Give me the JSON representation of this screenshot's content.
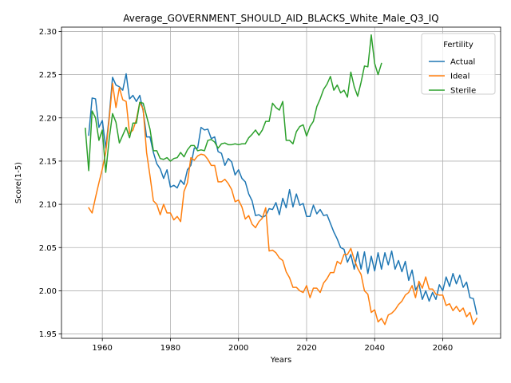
{
  "chart_data": {
    "type": "line",
    "title": "Average_GOVERNMENT_SHOULD_AID_BLACKS_White_Male_Q3_IQ",
    "xlabel": "Years",
    "ylabel": "Score(1-5)",
    "xlim": [
      1948,
      2077
    ],
    "ylim": [
      1.945,
      2.305
    ],
    "xticks": [
      1960,
      1980,
      2000,
      2020,
      2040,
      2060
    ],
    "yticks": [
      1.95,
      2.0,
      2.05,
      2.1,
      2.15,
      2.2,
      2.25,
      2.3
    ],
    "ytick_labels": [
      "1.95",
      "2.00",
      "2.05",
      "2.10",
      "2.15",
      "2.20",
      "2.25",
      "2.30"
    ],
    "grid": true,
    "legend": {
      "title": "Fertility",
      "position": "top-right"
    },
    "series": [
      {
        "name": "Actual",
        "color": "#1f77b4",
        "x": [
          1956,
          1957,
          1958,
          1959,
          1960,
          1961,
          1962,
          1963,
          1964,
          1965,
          1966,
          1967,
          1968,
          1969,
          1970,
          1971,
          1972,
          1973,
          1974,
          1975,
          1976,
          1977,
          1978,
          1979,
          1980,
          1981,
          1982,
          1983,
          1984,
          1985,
          1986,
          1987,
          1988,
          1989,
          1990,
          1991,
          1992,
          1993,
          1994,
          1995,
          1996,
          1997,
          1998,
          1999,
          2000,
          2001,
          2002,
          2003,
          2004,
          2005,
          2006,
          2007,
          2008,
          2009,
          2010,
          2011,
          2012,
          2013,
          2014,
          2015,
          2016,
          2017,
          2018,
          2019,
          2020,
          2021,
          2022,
          2023,
          2024,
          2025,
          2026,
          2027,
          2028,
          2029,
          2030,
          2031,
          2032,
          2033,
          2034,
          2035,
          2036,
          2037,
          2038,
          2039,
          2040,
          2041,
          2042,
          2043,
          2044,
          2045,
          2046,
          2047,
          2048,
          2049,
          2050,
          2051,
          2052,
          2053,
          2054,
          2055,
          2056,
          2057,
          2058,
          2059,
          2060,
          2061,
          2062,
          2063,
          2064,
          2065,
          2066,
          2067,
          2068,
          2069,
          2070
        ],
        "values": [
          2.18,
          2.223,
          2.222,
          2.189,
          2.197,
          2.165,
          2.201,
          2.247,
          2.238,
          2.236,
          2.232,
          2.251,
          2.222,
          2.226,
          2.219,
          2.226,
          2.208,
          2.178,
          2.178,
          2.16,
          2.147,
          2.141,
          2.13,
          2.14,
          2.12,
          2.122,
          2.119,
          2.128,
          2.123,
          2.14,
          2.145,
          2.165,
          2.165,
          2.189,
          2.186,
          2.187,
          2.176,
          2.178,
          2.161,
          2.159,
          2.145,
          2.153,
          2.149,
          2.134,
          2.14,
          2.13,
          2.126,
          2.112,
          2.104,
          2.087,
          2.088,
          2.085,
          2.087,
          2.095,
          2.094,
          2.102,
          2.088,
          2.107,
          2.096,
          2.117,
          2.097,
          2.112,
          2.099,
          2.101,
          2.086,
          2.086,
          2.099,
          2.089,
          2.094,
          2.087,
          2.088,
          2.078,
          2.068,
          2.06,
          2.05,
          2.048,
          2.033,
          2.042,
          2.025,
          2.045,
          2.025,
          2.045,
          2.02,
          2.04,
          2.023,
          2.044,
          2.025,
          2.044,
          2.03,
          2.046,
          2.025,
          2.035,
          2.022,
          2.034,
          2.012,
          2.024,
          2.001,
          2.008,
          1.99,
          2.0,
          1.988,
          1.998,
          1.99,
          2.007,
          2.0,
          2.016,
          2.005,
          2.02,
          2.008,
          2.018,
          2.004,
          2.01,
          1.992,
          1.991,
          1.973
        ]
      },
      {
        "name": "Ideal",
        "color": "#ff7f0e",
        "x": [
          1956,
          1957,
          1958,
          1959,
          1960,
          1961,
          1962,
          1963,
          1964,
          1965,
          1966,
          1967,
          1968,
          1969,
          1970,
          1971,
          1972,
          1973,
          1974,
          1975,
          1976,
          1977,
          1978,
          1979,
          1980,
          1981,
          1982,
          1983,
          1984,
          1985,
          1986,
          1987,
          1988,
          1989,
          1990,
          1991,
          1992,
          1993,
          1994,
          1995,
          1996,
          1997,
          1998,
          1999,
          2000,
          2001,
          2002,
          2003,
          2004,
          2005,
          2006,
          2007,
          2008,
          2009,
          2010,
          2011,
          2012,
          2013,
          2014,
          2015,
          2016,
          2017,
          2018,
          2019,
          2020,
          2021,
          2022,
          2023,
          2024,
          2025,
          2026,
          2027,
          2028,
          2029,
          2030,
          2031,
          2032,
          2033,
          2034,
          2035,
          2036,
          2037,
          2038,
          2039,
          2040,
          2041,
          2042,
          2043,
          2044,
          2045,
          2046,
          2047,
          2048,
          2049,
          2050,
          2051,
          2052,
          2053,
          2054,
          2055,
          2056,
          2057,
          2058,
          2059,
          2060,
          2061,
          2062,
          2063,
          2064,
          2065,
          2066,
          2067,
          2068,
          2069,
          2070
        ],
        "values": [
          2.096,
          2.09,
          2.108,
          2.125,
          2.141,
          2.16,
          2.198,
          2.24,
          2.212,
          2.235,
          2.221,
          2.219,
          2.182,
          2.186,
          2.198,
          2.218,
          2.21,
          2.16,
          2.133,
          2.104,
          2.1,
          2.088,
          2.1,
          2.09,
          2.09,
          2.082,
          2.086,
          2.08,
          2.115,
          2.125,
          2.154,
          2.151,
          2.156,
          2.158,
          2.157,
          2.152,
          2.145,
          2.145,
          2.126,
          2.126,
          2.129,
          2.124,
          2.117,
          2.103,
          2.105,
          2.097,
          2.083,
          2.087,
          2.077,
          2.073,
          2.08,
          2.084,
          2.096,
          2.046,
          2.047,
          2.044,
          2.038,
          2.035,
          2.022,
          2.015,
          2.004,
          2.004,
          2.0,
          1.998,
          2.006,
          1.992,
          2.003,
          2.003,
          1.998,
          2.009,
          2.014,
          2.021,
          2.021,
          2.034,
          2.031,
          2.042,
          2.042,
          2.049,
          2.036,
          2.026,
          2.019,
          2.0,
          1.996,
          1.975,
          1.978,
          1.964,
          1.968,
          1.961,
          1.972,
          1.974,
          1.978,
          1.984,
          1.988,
          1.995,
          1.998,
          2.006,
          1.992,
          2.011,
          2.003,
          2.016,
          2.002,
          2.002,
          1.996,
          1.995,
          1.995,
          1.983,
          1.985,
          1.977,
          1.982,
          1.976,
          1.98,
          1.97,
          1.975,
          1.961,
          1.968
        ]
      },
      {
        "name": "Sterile",
        "color": "#2ca02c",
        "x": [
          1955,
          1956,
          1957,
          1958,
          1959,
          1960,
          1961,
          1962,
          1963,
          1964,
          1965,
          1966,
          1967,
          1968,
          1969,
          1970,
          1971,
          1972,
          1973,
          1974,
          1975,
          1976,
          1977,
          1978,
          1979,
          1980,
          1981,
          1982,
          1983,
          1984,
          1985,
          1986,
          1987,
          1988,
          1989,
          1990,
          1991,
          1992,
          1993,
          1994,
          1995,
          1996,
          1997,
          1998,
          1999,
          2000,
          2001,
          2002,
          2003,
          2004,
          2005,
          2006,
          2007,
          2008,
          2009,
          2010,
          2011,
          2012,
          2013,
          2014,
          2015,
          2016,
          2017,
          2018,
          2019,
          2020,
          2021,
          2022,
          2023,
          2024,
          2025,
          2026,
          2027,
          2028,
          2029,
          2030,
          2031,
          2032,
          2033,
          2034,
          2035,
          2036,
          2037,
          2038,
          2039,
          2040,
          2041,
          2042
        ],
        "values": [
          2.188,
          2.139,
          2.208,
          2.2,
          2.174,
          2.186,
          2.137,
          2.175,
          2.205,
          2.195,
          2.171,
          2.18,
          2.189,
          2.177,
          2.194,
          2.194,
          2.218,
          2.217,
          2.202,
          2.187,
          2.162,
          2.162,
          2.153,
          2.152,
          2.154,
          2.15,
          2.153,
          2.154,
          2.16,
          2.155,
          2.163,
          2.168,
          2.168,
          2.162,
          2.163,
          2.162,
          2.174,
          2.175,
          2.172,
          2.165,
          2.17,
          2.171,
          2.169,
          2.169,
          2.17,
          2.169,
          2.17,
          2.17,
          2.177,
          2.181,
          2.186,
          2.18,
          2.186,
          2.196,
          2.196,
          2.217,
          2.212,
          2.209,
          2.219,
          2.174,
          2.174,
          2.17,
          2.184,
          2.19,
          2.192,
          2.179,
          2.19,
          2.196,
          2.213,
          2.222,
          2.233,
          2.239,
          2.248,
          2.232,
          2.238,
          2.229,
          2.232,
          2.224,
          2.253,
          2.236,
          2.225,
          2.241,
          2.26,
          2.259,
          2.296,
          2.263,
          2.25,
          2.263
        ]
      }
    ]
  }
}
